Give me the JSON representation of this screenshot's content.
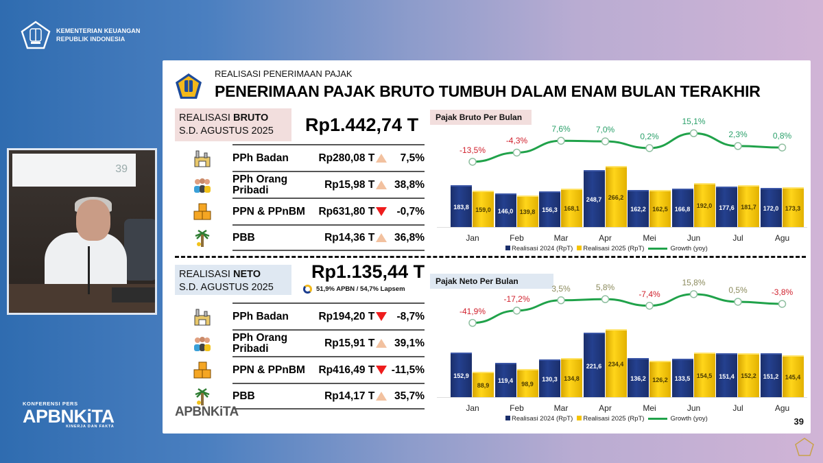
{
  "header": {
    "ministry_line1": "KEMENTERIAN KEUANGAN",
    "ministry_line2": "REPUBLIK INDONESIA"
  },
  "video": {
    "screen_number": "39"
  },
  "brand": {
    "kicker": "KONFERENSI PERS",
    "name": "APBNKiTA",
    "tagline": "KINERJA DAN FAKTA"
  },
  "slide": {
    "kicker": "REALISASI PENERIMAAN PAJAK",
    "title": "PENERIMAAN PAJAK BRUTO TUMBUH DALAM ENAM BULAN TERAKHIR",
    "page_number": "39",
    "footer_logo": "APBNKiTA",
    "bruto": {
      "label_prefix": "REALISASI ",
      "label_bold": "BRUTO",
      "label_line2": "S.D. AGUSTUS 2025",
      "total": "Rp1.442,74 T",
      "rows": [
        {
          "icon": "factory-icon",
          "label": "PPh Badan",
          "value": "Rp280,08 T",
          "trend": "up",
          "pct": "7,5%"
        },
        {
          "icon": "people-icon",
          "label": "PPh Orang Pribadi",
          "value": "Rp15,98 T",
          "trend": "up",
          "pct": "38,8%"
        },
        {
          "icon": "boxes-icon",
          "label": "PPN & PPnBM",
          "value": "Rp631,80 T",
          "trend": "down",
          "pct": "-0,7%"
        },
        {
          "icon": "palm-tree-icon",
          "label": "PBB",
          "value": "Rp14,36 T",
          "trend": "up",
          "pct": "36,8%"
        }
      ]
    },
    "neto": {
      "label_prefix": "REALISASI ",
      "label_bold": "NETO",
      "label_line2": "S.D. AGUSTUS 2025",
      "total": "Rp1.135,44 T",
      "apbn_note": "51,9% APBN / 54,7% Lapsem",
      "rows": [
        {
          "icon": "factory-icon",
          "label": "PPh Badan",
          "value": "Rp194,20 T",
          "trend": "down",
          "pct": "-8,7%"
        },
        {
          "icon": "people-icon",
          "label": "PPh Orang Pribadi",
          "value": "Rp15,91 T",
          "trend": "up",
          "pct": "39,1%"
        },
        {
          "icon": "boxes-icon",
          "label": "PPN & PPnBM",
          "value": "Rp416,49 T",
          "trend": "down",
          "pct": "-11,5%"
        },
        {
          "icon": "palm-tree-icon",
          "label": "PBB",
          "value": "Rp14,17 T",
          "trend": "up",
          "pct": "35,7%"
        }
      ]
    }
  },
  "colors": {
    "bar_2024": "#1b2f6b",
    "bar_2025": "#f5c400",
    "growth_line": "#20a24a",
    "negative": "#d0202c",
    "positive": "#2aa06a",
    "bruto_box": "#f2dedd",
    "neto_box": "#dfe8f2"
  },
  "chart_data": [
    {
      "type": "bar",
      "title": "Pajak Bruto Per Bulan",
      "categories": [
        "Jan",
        "Feb",
        "Mar",
        "Apr",
        "Mei",
        "Jun",
        "Jul",
        "Agu"
      ],
      "series": [
        {
          "name": "Realisasi 2024 (RpT)",
          "values": [
            183.8,
            146.0,
            156.3,
            248.7,
            162.2,
            166.8,
            177.6,
            172.0
          ],
          "labels": [
            "183,8",
            "146,0",
            "156,3",
            "248,7",
            "162,2",
            "166,8",
            "177,6",
            "172,0"
          ]
        },
        {
          "name": "Realisasi 2025 (RpT)",
          "values": [
            159.0,
            139.8,
            168.1,
            266.2,
            162.5,
            192.0,
            181.7,
            173.3
          ],
          "labels": [
            "159,0",
            "139,8",
            "168,1",
            "266,2",
            "162,5",
            "192,0",
            "181,7",
            "173,3"
          ]
        },
        {
          "name": "Growth (yoy)",
          "type": "line",
          "values": [
            -13.5,
            -4.3,
            7.6,
            7.0,
            0.2,
            15.1,
            2.3,
            0.8
          ],
          "labels": [
            "-13,5%",
            "-4,3%",
            "7,6%",
            "7,0%",
            "0,2%",
            "15,1%",
            "2,3%",
            "0,8%"
          ]
        }
      ],
      "legend": [
        "Realisasi 2024 (RpT)",
        "Realisasi 2025 (RpT)",
        "Growth (yoy)"
      ],
      "legend_position": "bottom",
      "xlabel": "",
      "ylabel": "",
      "grid": false
    },
    {
      "type": "bar",
      "title": "Pajak Neto Per Bulan",
      "categories": [
        "Jan",
        "Feb",
        "Mar",
        "Apr",
        "Mei",
        "Jun",
        "Jul",
        "Agu"
      ],
      "series": [
        {
          "name": "Realisasi 2024 (RpT)",
          "values": [
            152.9,
            119.4,
            130.3,
            221.6,
            136.2,
            133.5,
            151.4,
            151.2
          ],
          "labels": [
            "152,9",
            "119,4",
            "130,3",
            "221,6",
            "136,2",
            "133,5",
            "151,4",
            "151,2"
          ]
        },
        {
          "name": "Realisasi 2025 (RpT)",
          "values": [
            88.9,
            98.9,
            134.8,
            234.4,
            126.2,
            154.5,
            152.2,
            145.4
          ],
          "labels": [
            "88,9",
            "98,9",
            "134,8",
            "234,4",
            "126,2",
            "154,5",
            "152,2",
            "145,4"
          ]
        },
        {
          "name": "Growth (yoy)",
          "type": "line",
          "values": [
            -41.9,
            -17.2,
            3.5,
            5.8,
            -7.4,
            15.8,
            0.5,
            -3.8
          ],
          "labels": [
            "-41,9%",
            "-17,2%",
            "3,5%",
            "5,8%",
            "-7,4%",
            "15,8%",
            "0,5%",
            "-3,8%"
          ]
        }
      ],
      "legend": [
        "Realisasi 2024 (RpT)",
        "Realisasi 2025 (RpT)",
        "Growth (yoy)"
      ],
      "legend_position": "bottom",
      "xlabel": "",
      "ylabel": "",
      "grid": false
    }
  ]
}
